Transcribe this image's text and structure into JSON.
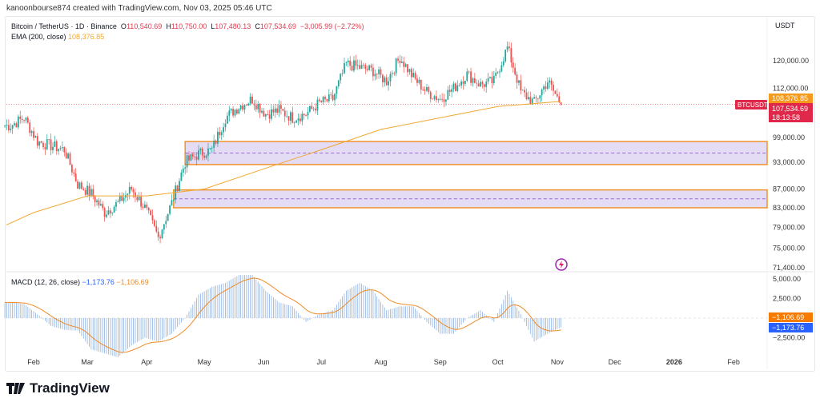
{
  "credit": "kanoonbourse874 created with TradingView.com, Nov 03, 2025 05:46 UTC",
  "legend": {
    "symbol": "Bitcoin / TetherUS · 1D · Binance",
    "o_label": "O",
    "o": "110,540.69",
    "h_label": "H",
    "h": "110,750.00",
    "l_label": "L",
    "l": "107,480.13",
    "c_label": "C",
    "c": "107,534.69",
    "change": "−3,005.99 (−2.72%)",
    "ema_label": "EMA (200, close)",
    "ema": "108,376.85"
  },
  "currency": "USDT",
  "macd_legend": {
    "label": "MACD (12, 26, close)",
    "macd": "−1,173.76",
    "signal": "−1,106.69"
  },
  "price_labels": {
    "symbol": "BTCUSDT",
    "ema": "108,376.85",
    "price": "107,534.69",
    "countdown": "18:13:58"
  },
  "macd_labels": {
    "signal": "−1,106.69",
    "macd": "−1,173.76"
  },
  "logo": "TradingView",
  "colors": {
    "up": "#26a69a",
    "down": "#ef5350",
    "ema": "#f0a830",
    "zone_fill": "#e4dcf5",
    "zone_border": "#f0932b",
    "macd": "#2962ff",
    "signal": "#f08a24"
  },
  "chart_data": [
    {
      "type": "candlestick",
      "scale": "log",
      "y_ticks": [
        "120,000.00",
        "112,000.00",
        "99,000.00",
        "93,000.00",
        "87,000.00",
        "83,000.00",
        "79,000.00",
        "75,000.00",
        "71,400.00"
      ],
      "x_ticks": [
        "Feb",
        "Mar",
        "Apr",
        "May",
        "Jun",
        "Jul",
        "Aug",
        "Sep",
        "Oct",
        "Nov",
        "Dec",
        "2026",
        "Feb"
      ],
      "dates": [
        "2025-01-20",
        "2025-01-27",
        "2025-02-03",
        "2025-02-10",
        "2025-02-17",
        "2025-02-24",
        "2025-03-03",
        "2025-03-10",
        "2025-03-17",
        "2025-03-24",
        "2025-03-31",
        "2025-04-07",
        "2025-04-14",
        "2025-04-21",
        "2025-04-28",
        "2025-05-05",
        "2025-05-12",
        "2025-05-19",
        "2025-05-26",
        "2025-06-02",
        "2025-06-09",
        "2025-06-16",
        "2025-06-23",
        "2025-06-30",
        "2025-07-07",
        "2025-07-14",
        "2025-07-21",
        "2025-07-28",
        "2025-08-04",
        "2025-08-11",
        "2025-08-18",
        "2025-08-25",
        "2025-09-01",
        "2025-09-08",
        "2025-09-15",
        "2025-09-22",
        "2025-09-29",
        "2025-10-06",
        "2025-10-13",
        "2025-10-20",
        "2025-10-27",
        "2025-11-03"
      ],
      "close": [
        102000,
        104000,
        98000,
        97000,
        96000,
        88000,
        86000,
        82000,
        84000,
        87000,
        83000,
        77000,
        84000,
        93000,
        95000,
        96000,
        104000,
        107000,
        109000,
        105000,
        106000,
        104000,
        105000,
        108000,
        109000,
        119000,
        118000,
        117000,
        114000,
        121000,
        115000,
        111000,
        109000,
        112000,
        116000,
        113000,
        114000,
        124000,
        111000,
        108000,
        114000,
        107534.69
      ],
      "ema200": {
        "dates": [
          "2025-01-17",
          "2025-02-01",
          "2025-03-01",
          "2025-04-01",
          "2025-05-01",
          "2025-06-01",
          "2025-07-01",
          "2025-08-01",
          "2025-09-01",
          "2025-10-01",
          "2025-11-03"
        ],
        "values": [
          79500,
          82000,
          85500,
          85500,
          87000,
          91500,
          96000,
          101000,
          104000,
          107000,
          108376.85
        ]
      },
      "zones": [
        {
          "from": "2025-04-21",
          "top": 98000,
          "bottom": 92500
        },
        {
          "from": "2025-04-15",
          "top": 86800,
          "bottom": 83000
        }
      ]
    },
    {
      "type": "macd",
      "y_ticks": [
        "5,000.00",
        "2,500.00",
        "−2,500.00"
      ],
      "macd": [
        2000,
        1800,
        500,
        -1000,
        -1500,
        -1600,
        -4000,
        -4500,
        -5000,
        -3500,
        -2500,
        -3000,
        -2000,
        0,
        3000,
        4000,
        4500,
        5500,
        5500,
        3500,
        2000,
        1500,
        -500,
        500,
        1000,
        3500,
        4500,
        3500,
        1000,
        1500,
        1500,
        -500,
        -2000,
        -2000,
        0,
        1000,
        -500,
        3500,
        500,
        -3000,
        -2000,
        -1173.76
      ]
    }
  ]
}
